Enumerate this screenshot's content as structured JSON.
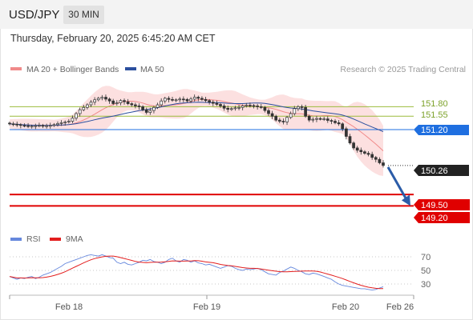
{
  "header": {
    "symbol": "USD/JPY",
    "timeframe": "30 MIN",
    "datetime": "Thursday, February 20, 2025 6:45:20 AM CET"
  },
  "legend": {
    "bollinger": {
      "label": "MA 20 + Bollinger Bands",
      "color": "#f08a8a"
    },
    "ma50": {
      "label": "MA 50",
      "color": "#2b4f9e"
    },
    "rsi": {
      "label": "RSI",
      "color": "#6688dd"
    },
    "rsi_ma": {
      "label": "9MA",
      "color": "#e31e1e"
    }
  },
  "credit": "Research © 2025 Trading Central",
  "levels": {
    "r2": {
      "label": "151.80",
      "value": 151.8,
      "color": "#9cbb3c"
    },
    "r1": {
      "label": "151.55",
      "value": 151.55,
      "color": "#9cbb3c"
    },
    "pivot": {
      "label": "151.20",
      "value": 151.2,
      "color": "#1f6fe0"
    },
    "last": {
      "label": "150.26",
      "value": 150.26,
      "color": "#333333"
    },
    "s1": {
      "label": "149.50",
      "value": 149.5,
      "color": "#e00000"
    },
    "s2": {
      "label": "149.20",
      "value": 149.2,
      "color": "#e00000"
    }
  },
  "rsi_ticks": [
    "70",
    "50",
    "30"
  ],
  "x_labels": [
    "Feb 18",
    "Feb 19",
    "Feb 20",
    "Feb 26"
  ],
  "chart_data": {
    "type": "candlestick",
    "price_close": [
      151.35,
      151.34,
      151.33,
      151.31,
      151.3,
      151.29,
      151.29,
      151.3,
      151.31,
      151.29,
      151.3,
      151.31,
      151.33,
      151.36,
      151.38,
      151.4,
      151.42,
      151.5,
      151.62,
      151.72,
      151.78,
      151.85,
      151.92,
      151.98,
      152.02,
      152.05,
      152.0,
      151.95,
      151.88,
      151.9,
      151.96,
      151.93,
      151.88,
      151.85,
      151.82,
      151.8,
      151.72,
      151.65,
      151.7,
      151.78,
      151.85,
      151.95,
      152.02,
      151.99,
      151.97,
      151.98,
      152.0,
      151.99,
      151.95,
      152.0,
      152.05,
      152.02,
      151.99,
      151.96,
      151.92,
      151.89,
      151.86,
      151.82,
      151.76,
      151.73,
      151.75,
      151.77,
      151.78,
      151.82,
      151.84,
      151.83,
      151.82,
      151.8,
      151.78,
      151.7,
      151.62,
      151.55,
      151.45,
      151.42,
      151.4,
      151.52,
      151.62,
      151.75,
      151.8,
      151.78,
      151.55,
      151.45,
      151.47,
      151.49,
      151.48,
      151.48,
      151.44,
      151.42,
      151.38,
      151.35,
      151.22,
      151.02,
      150.85,
      150.72,
      150.66,
      150.62,
      150.58,
      150.55,
      150.47,
      150.42,
      150.33,
      150.26
    ],
    "rsi": [
      41,
      39,
      37,
      39,
      38,
      40,
      41,
      38,
      40,
      43,
      45,
      47,
      50,
      53,
      56,
      60,
      62,
      64,
      66,
      68,
      70,
      72,
      73,
      72,
      71,
      73,
      71,
      69,
      68,
      62,
      60,
      62,
      59,
      58,
      60,
      62,
      65,
      64,
      66,
      63,
      62,
      60,
      62,
      66,
      68,
      64,
      62,
      66,
      65,
      62,
      64,
      61,
      60,
      58,
      59,
      57,
      55,
      53,
      55,
      57,
      56,
      53,
      51,
      50,
      52,
      51,
      52,
      53,
      51,
      48,
      45,
      44,
      43,
      47,
      49,
      52,
      55,
      53,
      50,
      48,
      45,
      44,
      46,
      45,
      43,
      41,
      39,
      37,
      33,
      30,
      28,
      27,
      26,
      25,
      24,
      23,
      23,
      22,
      21,
      22,
      24,
      26
    ],
    "ma50_label": "MA 50",
    "bollinger_label": "MA 20 + Bollinger Bands",
    "rsi_ylim": [
      20,
      80
    ],
    "x_tick_labels": [
      "Feb 18",
      "Feb 19",
      "Feb 20",
      "Feb 26"
    ],
    "projection": {
      "from": 150.26,
      "to": 149.2
    }
  }
}
